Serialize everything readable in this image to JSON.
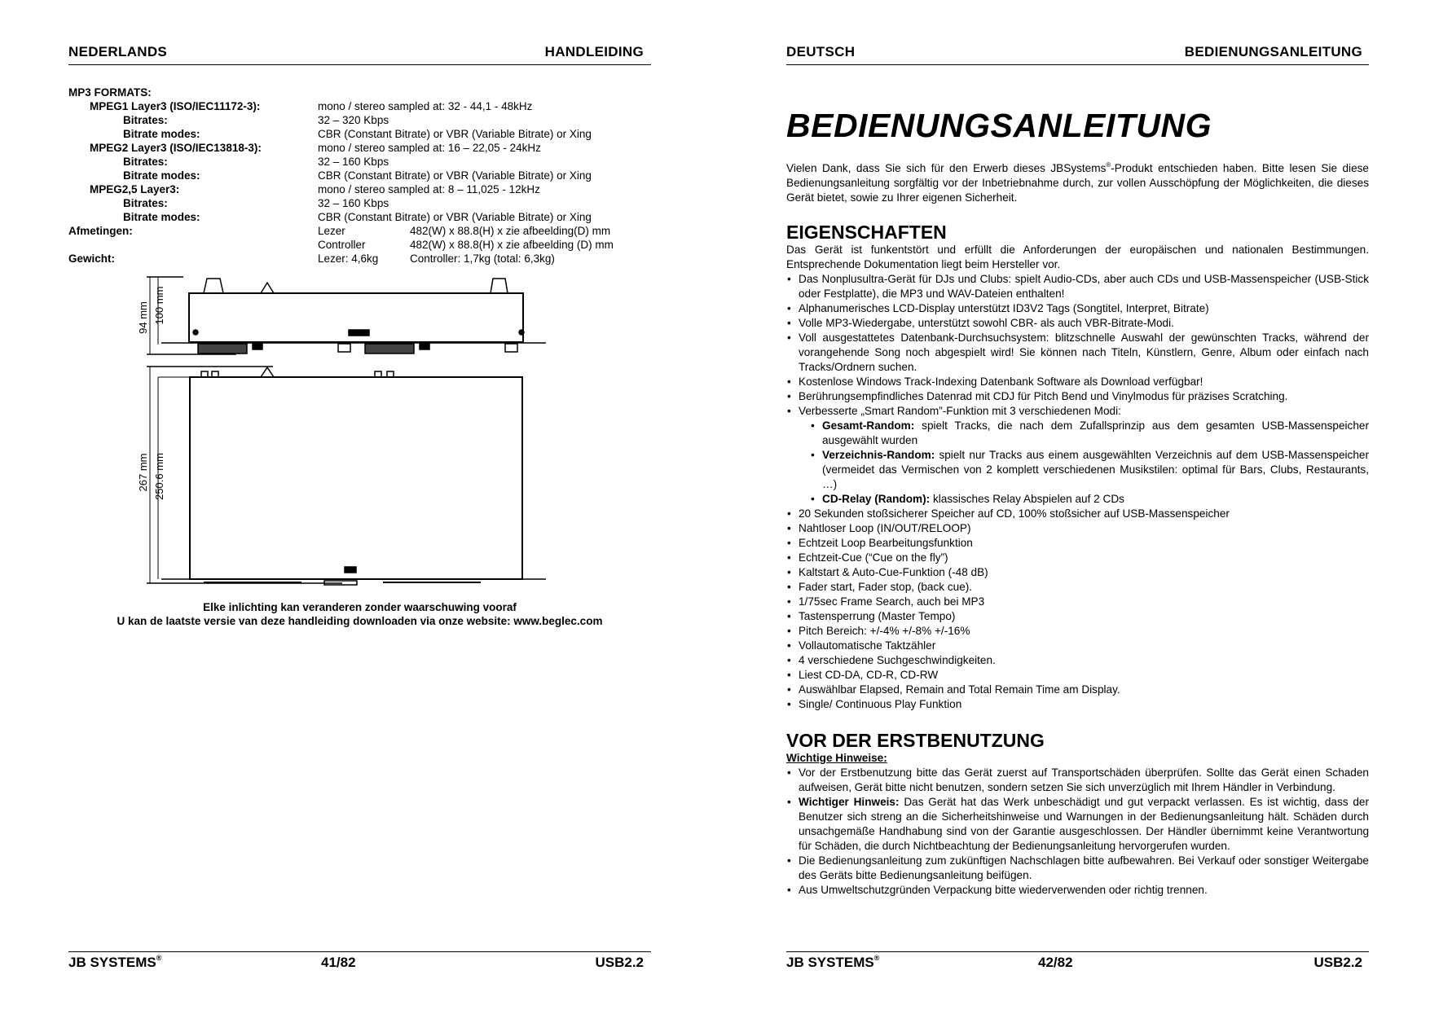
{
  "left_page": {
    "header": {
      "left": "NEDERLANDS",
      "right": "HANDLEIDING"
    },
    "specs": [
      {
        "level": 0,
        "label": "MP3 FORMATS:",
        "value": "",
        "value2": ""
      },
      {
        "level": 1,
        "label": "MPEG1 Layer3 (ISO/IEC11172-3):",
        "value": "mono / stereo sampled at: 32 - 44,1 - 48kHz",
        "value2": ""
      },
      {
        "level": 2,
        "label": "Bitrates:",
        "value": "32 – 320 Kbps",
        "value2": ""
      },
      {
        "level": 2,
        "label": "Bitrate modes:",
        "value": "CBR (Constant Bitrate) or VBR (Variable Bitrate) or Xing",
        "value2": ""
      },
      {
        "level": 1,
        "label": "MPEG2 Layer3 (ISO/IEC13818-3):",
        "value": "mono / stereo sampled at: 16 – 22,05 - 24kHz",
        "value2": ""
      },
      {
        "level": 2,
        "label": "Bitrates:",
        "value": "32 – 160 Kbps",
        "value2": ""
      },
      {
        "level": 2,
        "label": "Bitrate modes:",
        "value": "CBR (Constant Bitrate) or VBR (Variable Bitrate) or Xing",
        "value2": ""
      },
      {
        "level": 1,
        "label": "MPEG2,5 Layer3:",
        "value": "mono / stereo sampled at: 8 – 11,025 - 12kHz",
        "value2": ""
      },
      {
        "level": 2,
        "label": "Bitrates:",
        "value": "32 – 160 Kbps",
        "value2": ""
      },
      {
        "level": 2,
        "label": "Bitrate modes:",
        "value": "CBR (Constant Bitrate) or VBR (Variable Bitrate) or Xing",
        "value2": ""
      },
      {
        "level": 0,
        "label": "Afmetingen:",
        "value": "Lezer",
        "value2": "482(W) x 88.8(H) x zie afbeelding(D) mm"
      },
      {
        "level": 0,
        "label": "",
        "value": "Controller",
        "value2": "482(W) x 88.8(H) x zie afbeelding (D) mm"
      },
      {
        "level": 0,
        "label": "Gewicht:",
        "value": "Lezer: 4,6kg",
        "value2": "Controller: 1,7kg  (total: 6,3kg)"
      }
    ],
    "diagram": {
      "dim_94": "94 mm",
      "dim_100": "100 mm",
      "dim_267": "267 mm",
      "dim_250": "250.6 mm"
    },
    "notes": [
      "Elke inlichting kan veranderen zonder waarschuwing vooraf",
      "U kan de laatste versie van deze handleiding downloaden via onze website: www.beglec.com"
    ],
    "footer": {
      "brand": "JB SYSTEMS",
      "reg": "®",
      "page": "41/82",
      "model": "USB2.2"
    }
  },
  "right_page": {
    "header": {
      "left": "DEUTSCH",
      "right": "BEDIENUNGSANLEITUNG"
    },
    "title": "BEDIENUNGSANLEITUNG",
    "intro_a": "Vielen Dank, dass Sie sich für den Erwerb dieses JBSystems",
    "intro_reg": "®",
    "intro_b": "-Produkt entschieden haben. Bitte lesen Sie diese Bedienungsanleitung sorgfältig vor der Inbetriebnahme durch, zur vollen Ausschöpfung der Möglichkeiten, die dieses Gerät bietet, sowie zu Ihrer eigenen Sicherheit.",
    "features_heading": "EIGENSCHAFTEN",
    "features_intro": "Das Gerät ist funkentstört und erfüllt die Anforderungen der europäischen und nationalen Bestimmungen. Entsprechende Dokumentation liegt beim Hersteller vor.",
    "features": [
      "Das Nonplusultra-Gerät für DJs und Clubs: spielt Audio-CDs, aber auch CDs und USB-Massenspeicher (USB-Stick oder Festplatte), die MP3 und WAV-Dateien enthalten!",
      "Alphanumerisches LCD-Display unterstützt ID3V2 Tags (Songtitel, Interpret, Bitrate)",
      "Volle MP3-Wiedergabe, unterstützt sowohl CBR- als auch VBR-Bitrate-Modi.",
      "Voll ausgestattetes Datenbank-Durchsuchsystem: blitzschnelle Auswahl der gewünschten Tracks, während der vorangehende Song noch abgespielt wird! Sie können nach Titeln, Künstlern, Genre, Album oder einfach nach Tracks/Ordnern suchen.",
      "Kostenlose Windows Track-Indexing Datenbank Software als Download verfügbar!",
      "Berührungsempfindliches Datenrad mit CDJ für Pitch Bend und Vinylmodus für präzises Scratching.",
      "Verbesserte  „Smart Random”-Funktion mit 3 verschiedenen Modi:"
    ],
    "random_modes": [
      {
        "bold": "Gesamt-Random:",
        "text": " spielt Tracks, die nach dem Zufallsprinzip aus dem gesamten USB-Massenspeicher ausgewählt wurden"
      },
      {
        "bold": "Verzeichnis-Random:",
        "text": " spielt nur Tracks aus einem ausgewählten Verzeichnis auf dem USB-Massenspeicher (vermeidet das Vermischen von 2 komplett verschiedenen Musikstilen: optimal für Bars, Clubs, Restaurants, …)"
      },
      {
        "bold": "CD-Relay (Random):",
        "text": " klassisches Relay Abspielen auf 2 CDs"
      }
    ],
    "features_more": [
      "20 Sekunden stoßsicherer Speicher auf CD, 100% stoßsicher auf USB-Massenspeicher",
      "Nahtloser Loop (IN/OUT/RELOOP)",
      "Echtzeit Loop Bearbeitungsfunktion",
      "Echtzeit-Cue (“Cue on the fly”)",
      "Kaltstart & Auto-Cue-Funktion (-48 dB)",
      "Fader start, Fader stop, (back cue).",
      "1/75sec Frame Search, auch bei MP3",
      "Tastensperrung (Master Tempo)",
      "Pitch Bereich: +/-4%  +/-8%  +/-16%",
      "Vollautomatische Taktzähler",
      "4 verschiedene Suchgeschwindigkeiten.",
      "Liest CD-DA, CD-R, CD-RW",
      "Auswählbar Elapsed, Remain and Total Remain Time am Display.",
      "Single/ Continuous Play Funktion"
    ],
    "before_heading": "VOR DER ERSTBENUTZUNG",
    "before_sub": "Wichtige Hinweise:",
    "before_items": [
      {
        "bold": "",
        "text": "Vor der Erstbenutzung bitte das Gerät zuerst auf Transportschäden überprüfen. Sollte das Gerät einen Schaden aufweisen, Gerät bitte nicht benutzen, sondern setzen Sie sich unverzüglich mit Ihrem Händler in Verbindung."
      },
      {
        "bold": "Wichtiger Hinweis:",
        "text": " Das Gerät hat das Werk unbeschädigt und gut verpackt verlassen. Es ist wichtig, dass der Benutzer sich streng an die Sicherheitshinweise und Warnungen in der Bedienungsanleitung hält. Schäden durch unsachgemäße Handhabung sind von der Garantie ausgeschlossen. Der Händler übernimmt keine Verantwortung für Schäden, die durch Nichtbeachtung der Bedienungsanleitung hervorgerufen wurden."
      },
      {
        "bold": "",
        "text": "Die Bedienungsanleitung zum zukünftigen Nachschlagen bitte aufbewahren. Bei Verkauf oder sonstiger Weitergabe des Geräts bitte Bedienungsanleitung beifügen."
      },
      {
        "bold": "",
        "text": "Aus Umweltschutzgründen Verpackung bitte wiederverwenden oder richtig trennen."
      }
    ],
    "footer": {
      "brand": "JB SYSTEMS",
      "reg": "®",
      "page": "42/82",
      "model": "USB2.2"
    }
  }
}
